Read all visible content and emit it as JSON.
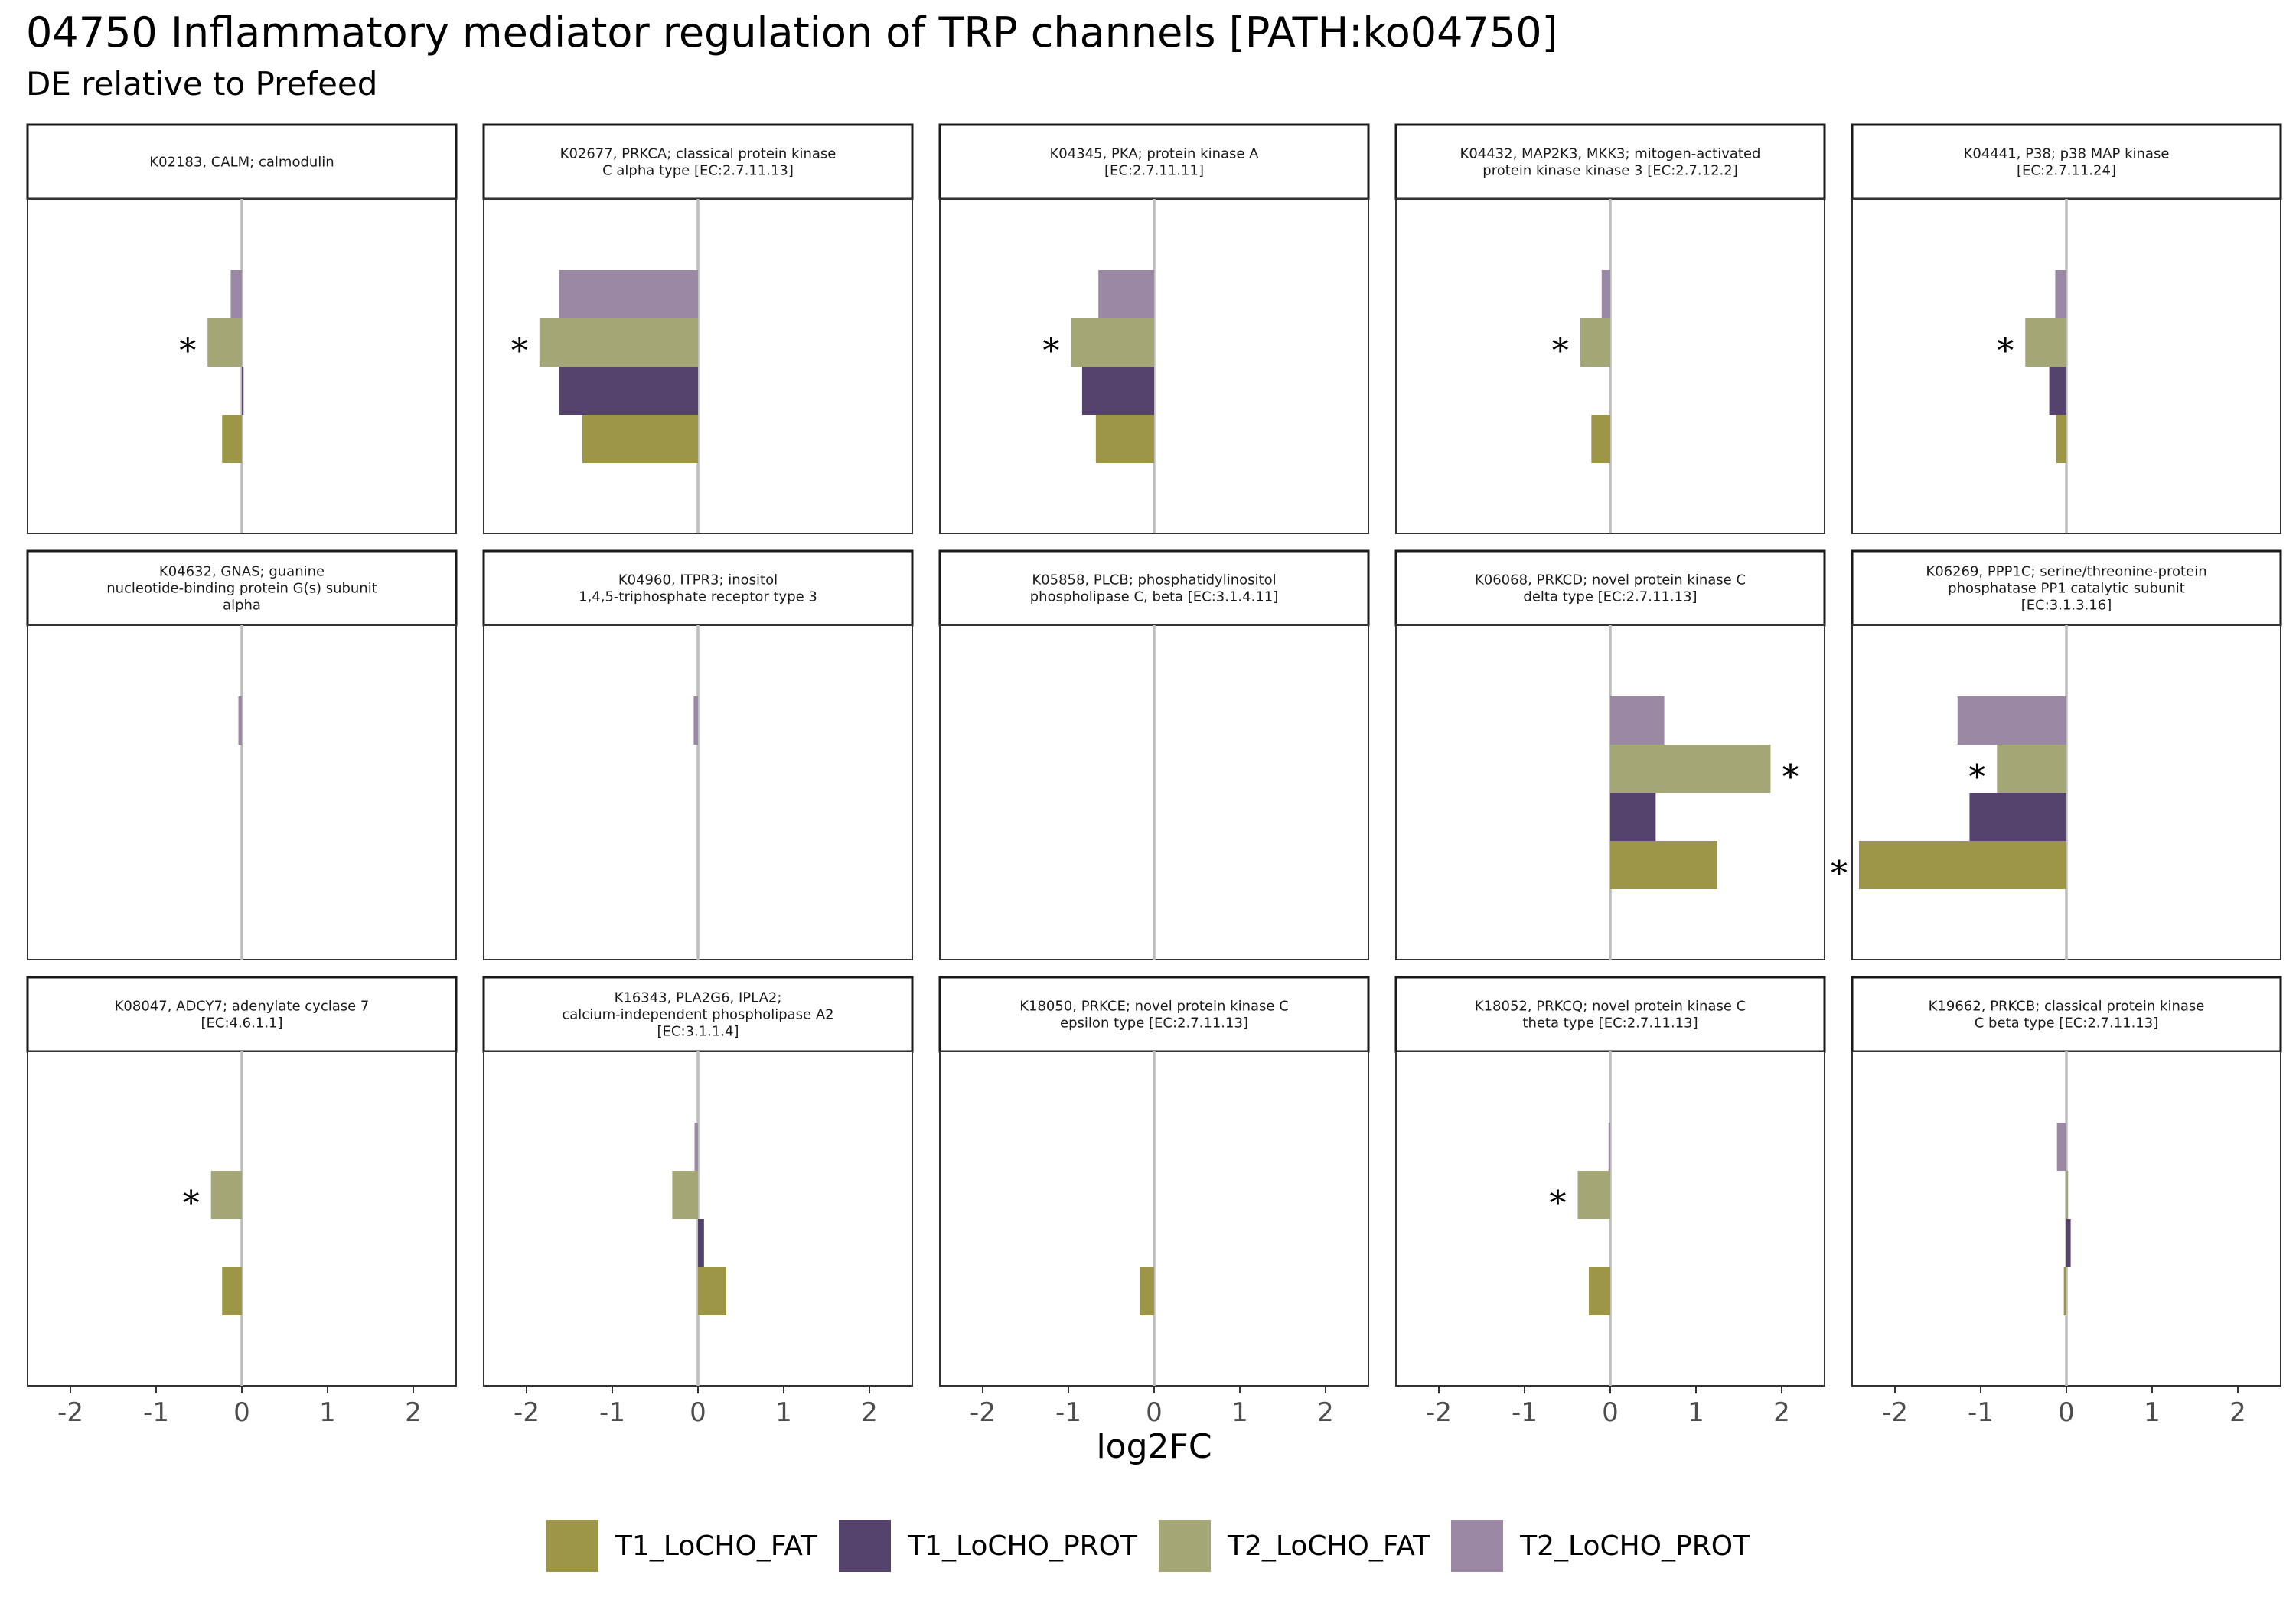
{
  "title": "04750 Inflammatory mediator regulation of TRP channels [PATH:ko04750]",
  "subtitle": "DE relative to Prefeed",
  "chart_data": {
    "type": "bar",
    "orientation": "horizontal",
    "layout": "facet-grid 3x5",
    "xlabel": "log2FC",
    "xlim": [
      -2.5,
      2.5
    ],
    "xticks": [
      -2,
      -1,
      0,
      1,
      2
    ],
    "xtick_labels": [
      "-2",
      "-1",
      "0",
      "1",
      "2"
    ],
    "grid": false,
    "zero_line": true,
    "significance_marker": "*",
    "legend_position": "bottom",
    "groups_bottom_to_top": [
      "T1_LoCHO_FAT",
      "T1_LoCHO_PROT",
      "T2_LoCHO_FAT",
      "T2_LoCHO_PROT"
    ],
    "series": [
      {
        "name": "T1_LoCHO_FAT",
        "color": "#9d9647"
      },
      {
        "name": "T1_LoCHO_PROT",
        "color": "#55436e"
      },
      {
        "name": "T2_LoCHO_FAT",
        "color": "#a4a676"
      },
      {
        "name": "T2_LoCHO_PROT",
        "color": "#9a88a5"
      }
    ],
    "facets": [
      {
        "label": [
          "K02183, CALM; calmodulin"
        ],
        "values": [
          -0.23,
          0.02,
          -0.4,
          -0.13
        ],
        "sig": [
          false,
          false,
          true,
          false
        ]
      },
      {
        "label": [
          "K02677, PRKCA; classical protein kinase",
          "C alpha type [EC:2.7.11.13]"
        ],
        "values": [
          -1.35,
          -1.62,
          -1.85,
          -1.62
        ],
        "sig": [
          false,
          false,
          true,
          false
        ]
      },
      {
        "label": [
          "K04345, PKA; protein kinase A",
          "[EC:2.7.11.11]"
        ],
        "values": [
          -0.68,
          -0.84,
          -0.97,
          -0.65
        ],
        "sig": [
          false,
          false,
          true,
          false
        ]
      },
      {
        "label": [
          "K04432, MAP2K3, MKK3; mitogen-activated",
          "protein kinase kinase 3 [EC:2.7.12.2]"
        ],
        "values": [
          -0.22,
          0,
          -0.35,
          -0.1
        ],
        "sig": [
          false,
          false,
          true,
          false
        ]
      },
      {
        "label": [
          "K04441, P38; p38 MAP kinase",
          "[EC:2.7.11.24]"
        ],
        "values": [
          -0.12,
          -0.2,
          -0.48,
          -0.13
        ],
        "sig": [
          false,
          false,
          true,
          false
        ]
      },
      {
        "label": [
          "K04632, GNAS; guanine",
          "nucleotide-binding protein G(s) subunit",
          "alpha"
        ],
        "values": [
          0,
          0,
          0,
          -0.04
        ],
        "sig": [
          false,
          false,
          false,
          false
        ]
      },
      {
        "label": [
          "K04960, ITPR3; inositol",
          "1,4,5-triphosphate receptor type 3"
        ],
        "values": [
          0,
          0,
          0,
          -0.05
        ],
        "sig": [
          false,
          false,
          false,
          false
        ]
      },
      {
        "label": [
          "K05858, PLCB; phosphatidylinositol",
          "phospholipase C, beta [EC:3.1.4.11]"
        ],
        "values": [
          0,
          0,
          0,
          0
        ],
        "sig": [
          false,
          false,
          false,
          false
        ]
      },
      {
        "label": [
          "K06068, PRKCD; novel protein kinase C",
          "delta type [EC:2.7.11.13]"
        ],
        "values": [
          1.25,
          0.53,
          1.87,
          0.63
        ],
        "sig": [
          false,
          false,
          true,
          false
        ]
      },
      {
        "label": [
          "K06269, PPP1C; serine/threonine-protein",
          "phosphatase PP1 catalytic subunit",
          "[EC:3.1.3.16]"
        ],
        "values": [
          -2.42,
          -1.13,
          -0.81,
          -1.27
        ],
        "sig": [
          true,
          false,
          true,
          false
        ]
      },
      {
        "label": [
          "K08047, ADCY7; adenylate cyclase 7",
          "[EC:4.6.1.1]"
        ],
        "values": [
          -0.23,
          0,
          -0.36,
          0
        ],
        "sig": [
          false,
          false,
          true,
          false
        ]
      },
      {
        "label": [
          "K16343, PLA2G6, IPLA2;",
          "calcium-independent phospholipase A2",
          "[EC:3.1.1.4]"
        ],
        "values": [
          0.33,
          0.07,
          -0.3,
          -0.04
        ],
        "sig": [
          false,
          false,
          false,
          false
        ]
      },
      {
        "label": [
          "K18050, PRKCE; novel protein kinase C",
          "epsilon type [EC:2.7.11.13]"
        ],
        "values": [
          -0.17,
          0,
          0,
          0
        ],
        "sig": [
          false,
          false,
          false,
          false
        ]
      },
      {
        "label": [
          "K18052, PRKCQ; novel protein kinase C",
          "theta type [EC:2.7.11.13]"
        ],
        "values": [
          -0.25,
          0,
          -0.38,
          -0.02
        ],
        "sig": [
          false,
          false,
          true,
          false
        ]
      },
      {
        "label": [
          "K19662, PRKCB; classical protein kinase",
          "C beta type [EC:2.7.11.13]"
        ],
        "values": [
          -0.03,
          0.05,
          0.02,
          -0.11
        ],
        "sig": [
          false,
          false,
          false,
          false
        ]
      }
    ]
  }
}
